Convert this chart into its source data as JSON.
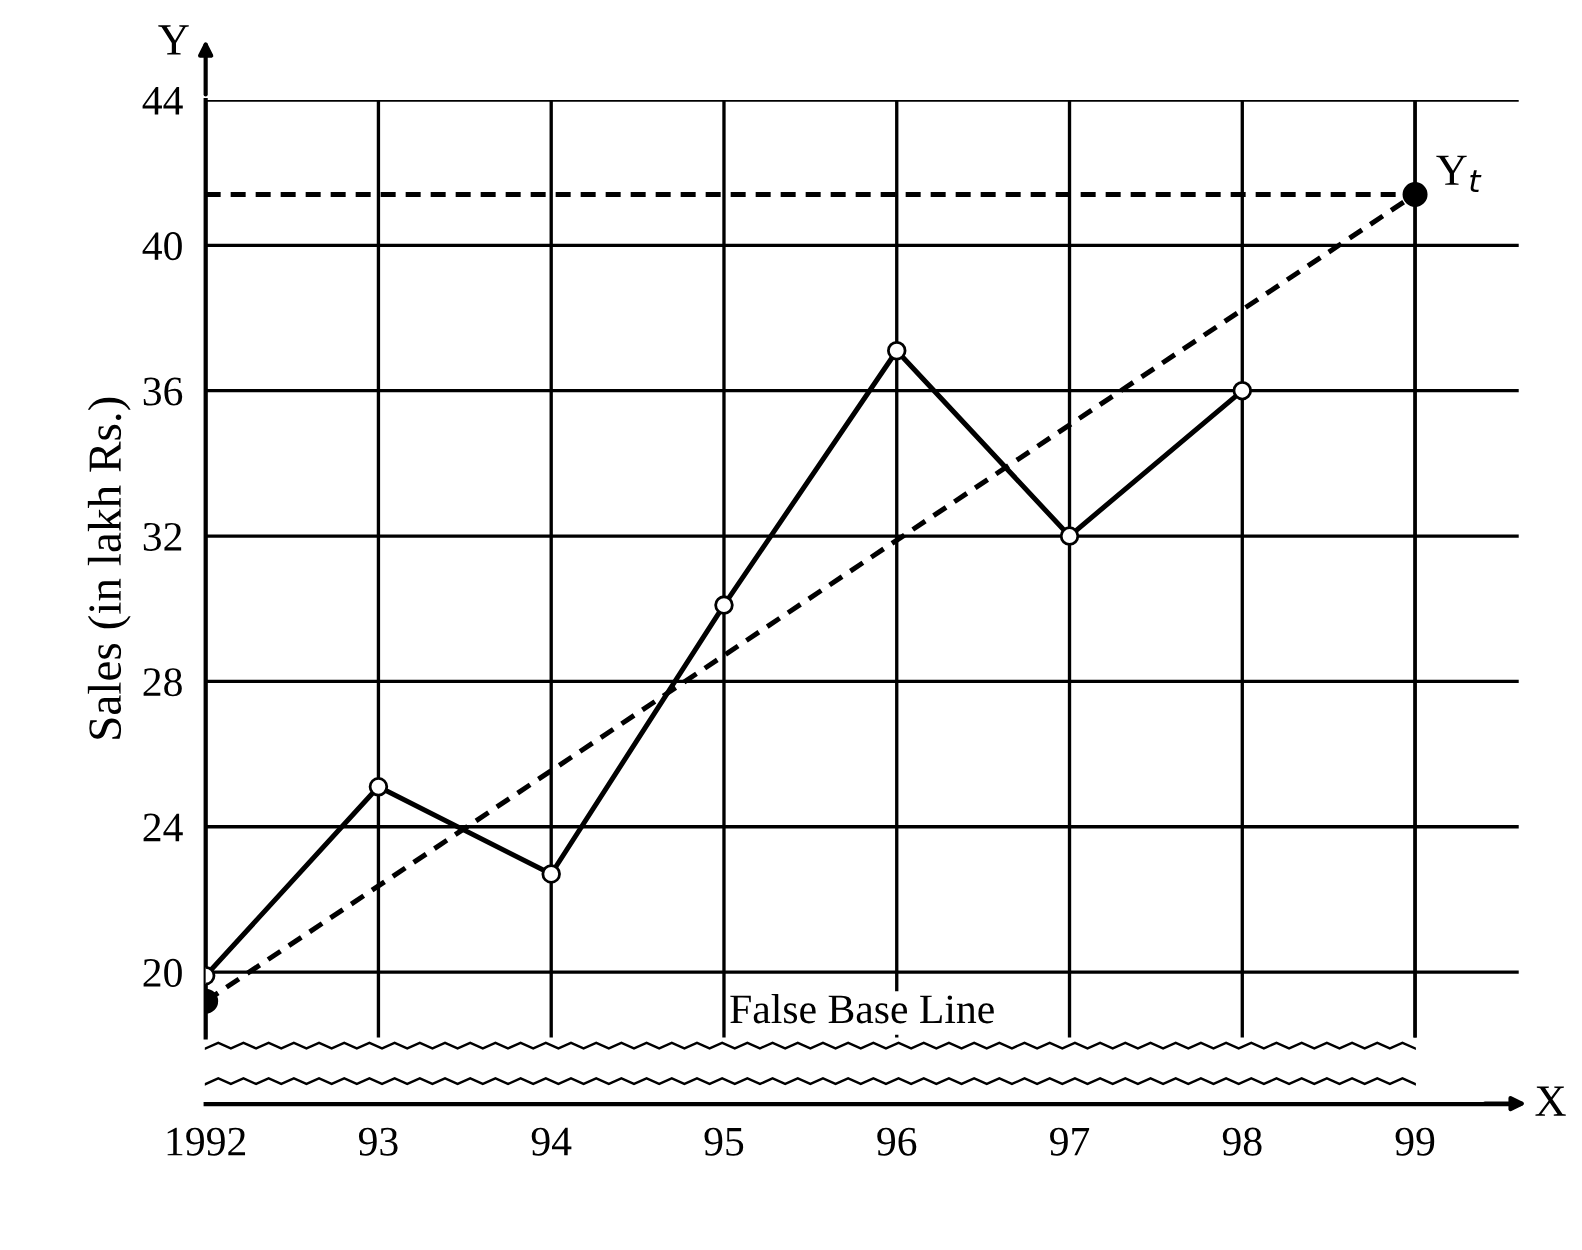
{
  "chart_data": {
    "type": "line",
    "ylabel": "Sales (in lakh Rs.)",
    "x": [
      1992,
      1993,
      1994,
      1995,
      1996,
      1997,
      1998
    ],
    "series": [
      {
        "type": "line",
        "color": "#000000",
        "marker": "circle",
        "line_style": "solid",
        "values": [
          19.9,
          25.1,
          22.7,
          30.1,
          37.1,
          32.0,
          36.0
        ]
      },
      {
        "type": "line",
        "color": "#000000",
        "marker": "circle",
        "line_style": "dashed",
        "x": [
          1992,
          1999
        ],
        "values": [
          19.2,
          41.4
        ]
      }
    ],
    "ref_lines": [
      {
        "axis": "y",
        "value": 41.4,
        "label": "Y$_{t}$",
        "color": "#000000",
        "line_style": "dashed"
      }
    ],
    "xlim": [
      1992,
      1999.6
    ],
    "ylim": [
      18.2,
      44
    ],
    "xticks": [
      1992,
      {
        "value": 1993,
        "label": "93"
      },
      {
        "value": 1994,
        "label": "94"
      },
      {
        "value": 1995,
        "label": "95"
      },
      {
        "value": 1996,
        "label": "96"
      },
      {
        "value": 1997,
        "label": "97"
      },
      {
        "value": 1998,
        "label": "98"
      },
      {
        "value": 1999,
        "label": "99"
      }
    ],
    "yticks": [
      20,
      24,
      28,
      32,
      36,
      40,
      44
    ],
    "grid": true,
    "annotations": [
      "False Base Line",
      "Y",
      "X"
    ]
  }
}
